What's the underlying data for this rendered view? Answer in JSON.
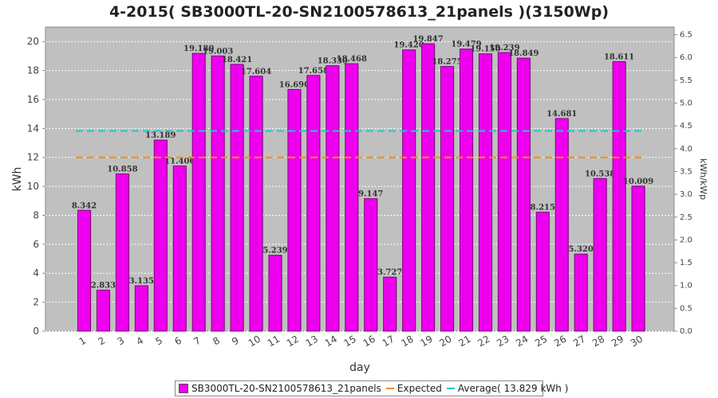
{
  "chart_data": {
    "type": "bar",
    "title": "4-2015( SB3000TL-20-SN2100578613_21panels )(3150Wp)",
    "xlabel": "day",
    "ylabel": "kWh",
    "y2label": "kWh/kWp",
    "ylim": [
      0,
      21
    ],
    "yticks": [
      0,
      2,
      4,
      6,
      8,
      10,
      12,
      14,
      16,
      18,
      20
    ],
    "y2lim": [
      0,
      6.667
    ],
    "y2ticks": [
      "0.0",
      "0.5",
      "1.0",
      "1.5",
      "2.0",
      "2.5",
      "3.0",
      "3.5",
      "4.0",
      "4.5",
      "5.0",
      "5.5",
      "6.0",
      "6.5"
    ],
    "grid": true,
    "legend_position": "bottom",
    "categories": [
      "1",
      "2",
      "3",
      "4",
      "5",
      "6",
      "7",
      "8",
      "9",
      "10",
      "11",
      "12",
      "13",
      "14",
      "15",
      "16",
      "17",
      "18",
      "19",
      "20",
      "21",
      "22",
      "23",
      "24",
      "25",
      "26",
      "27",
      "28",
      "29",
      "30"
    ],
    "series": [
      {
        "name": "SB3000TL-20-SN2100578613_21panels",
        "color": "#ee00ee",
        "values": [
          8.342,
          2.833,
          10.858,
          3.135,
          13.189,
          11.406,
          19.18,
          19.003,
          18.421,
          17.604,
          5.239,
          16.69,
          17.658,
          18.33,
          18.468,
          9.147,
          3.727,
          19.42,
          19.847,
          18.275,
          19.479,
          19.15,
          19.239,
          18.849,
          8.215,
          14.681,
          5.32,
          10.538,
          18.611,
          10.009
        ],
        "labels": [
          "8.342",
          "2.833",
          "10.858",
          "3.135",
          "13.189",
          "11.406",
          "19.180",
          "19.003",
          "18.421",
          "17.604",
          "5.239",
          "16.690",
          "17.658",
          "18.330",
          "18.468",
          "9.147",
          "3.727",
          "19.420",
          "19.847",
          "18.275",
          "19.479",
          "19.150",
          "19.239",
          "18.849",
          "8.215",
          "14.681",
          "5.320",
          "10.538",
          "18.611",
          "10.009"
        ]
      }
    ],
    "lines": [
      {
        "name": "Expected",
        "value": 12.0,
        "color": "#ff8c00"
      },
      {
        "name": "Average( 13.829 kWh )",
        "value": 13.829,
        "color": "#20c8c8"
      }
    ]
  }
}
